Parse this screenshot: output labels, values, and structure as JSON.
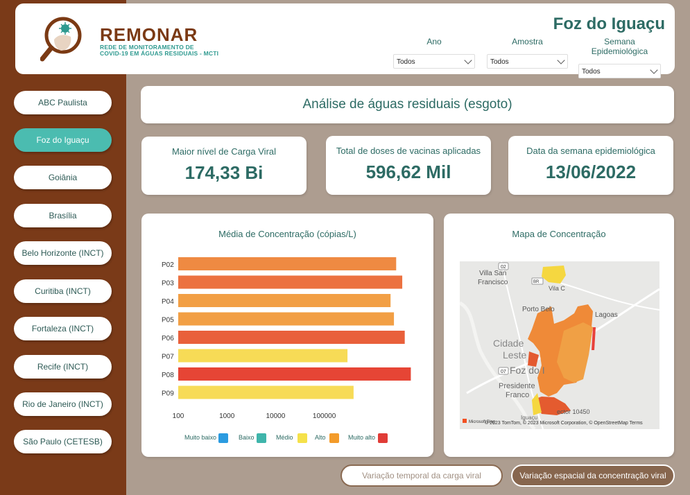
{
  "header": {
    "brand": "REMONAR",
    "brand_sub_1": "REDE DE MONITORAMENTO DE",
    "brand_sub_2": "COVID-19 EM ÁGUAS RESIDUAIS - MCTI",
    "city_title": "Foz do Iguaçu",
    "filters": [
      {
        "label": "Ano",
        "value": "Todos"
      },
      {
        "label": "Amostra",
        "value": "Todos"
      },
      {
        "label": "Semana Epidemiológica",
        "value": "Todos"
      }
    ]
  },
  "sidebar": {
    "items": [
      {
        "label": "ABC Paulista"
      },
      {
        "label": "Foz do Iguaçu"
      },
      {
        "label": "Goiânia"
      },
      {
        "label": "Brasília"
      },
      {
        "label": "Belo Horizonte (INCT)"
      },
      {
        "label": "Curitiba (INCT)"
      },
      {
        "label": "Fortaleza (INCT)"
      },
      {
        "label": "Recife (INCT)"
      },
      {
        "label": "Rio de Janeiro (INCT)"
      },
      {
        "label": "São Paulo (CETESB)"
      }
    ],
    "active_index": 1
  },
  "title_card": "Análise de águas residuais (esgoto)",
  "kpis": [
    {
      "label": "Maior nível de Carga Viral",
      "value": "174,33 Bi"
    },
    {
      "label": "Total de doses de vacinas aplicadas",
      "value": "596,62 Mil"
    },
    {
      "label": "Data da semana epidemiológica",
      "value": "13/06/2022"
    }
  ],
  "chart_data": {
    "type": "bar",
    "orientation": "horizontal",
    "title": "Média de Concentração (cópias/L)",
    "xscale": "log",
    "xlim": [
      100,
      10000000
    ],
    "xticks": [
      "100",
      "1000",
      "10000",
      "100000"
    ],
    "categories": [
      "P02",
      "P03",
      "P04",
      "P05",
      "P06",
      "P07",
      "P08",
      "P09"
    ],
    "values": [
      3000000,
      4000000,
      2300000,
      2700000,
      4500000,
      300000,
      6000000,
      400000
    ],
    "levels": [
      "Alto",
      "Alto",
      "Alto",
      "Alto",
      "Muito alto",
      "Médio",
      "Muito alto",
      "Médio"
    ],
    "colors": [
      "#ef8a42",
      "#ec7140",
      "#f29f45",
      "#f29f45",
      "#e9603b",
      "#f7db56",
      "#e64535",
      "#f7db56"
    ],
    "legend": [
      {
        "label": "Muito baixo",
        "color": "#2b9be0"
      },
      {
        "label": "Baixo",
        "color": "#3fb5ab"
      },
      {
        "label": "Médio",
        "color": "#f5e14a"
      },
      {
        "label": "Alto",
        "color": "#f39b2a"
      },
      {
        "label": "Muito alto",
        "color": "#e03c37"
      }
    ],
    "legend_position": "bottom"
  },
  "map": {
    "title": "Mapa de Concentração",
    "labels": [
      "Villa San",
      "Francisco",
      "Vila C",
      "Porto Belo",
      "Lagoas",
      "Cidade",
      "Leste",
      "Foz do I",
      "Presidente",
      "Franco",
      "Iguaçu",
      "ector 10450"
    ],
    "route_badges": [
      "02",
      "07",
      "BR"
    ],
    "attribution": "© 2023 TomTom, © 2023 Microsoft Corporation, © OpenStreetMap  Terms",
    "provider": "Microsoft Bing"
  },
  "nav": {
    "temporal": "Variação temporal da carga viral",
    "espacial": "Variação espacial da concentração viral"
  }
}
